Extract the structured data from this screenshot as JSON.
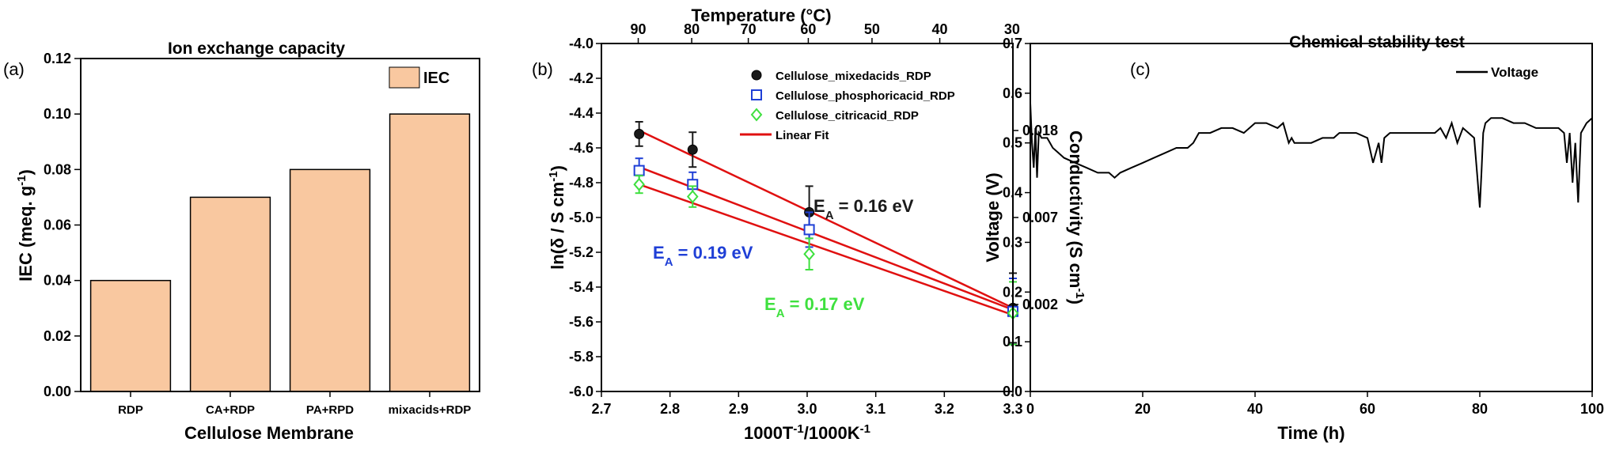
{
  "panels": {
    "a": {
      "letter": "(a)",
      "chart_data": {
        "type": "bar",
        "title": "Ion exchange capacity",
        "xlabel": "Cellulose Membrane",
        "ylabel": "IEC (meq. g",
        "ylabel_sup": "-1",
        "ylabel_end": ")",
        "categories": [
          "RDP",
          "CA+RDP",
          "PA+RPD",
          "mixacids+RDP"
        ],
        "series": [
          {
            "name": "IEC",
            "values": [
              0.04,
              0.07,
              0.08,
              0.1
            ]
          }
        ],
        "ylim": [
          0.0,
          0.12
        ],
        "yticks": [
          "0.00",
          "0.02",
          "0.04",
          "0.06",
          "0.08",
          "0.10",
          "0.12"
        ],
        "legend": "top-right",
        "bar_color": "#F9C8A0"
      }
    },
    "b": {
      "letter": "(b)",
      "chart_data": {
        "type": "scatter",
        "xlabel": "1000T",
        "xlabel_sup1": "-1",
        "xlabel_mid": "/1000K",
        "xlabel_sup2": "-1",
        "ylabel": "ln(δ / S cm",
        "ylabel_sup": "-1",
        "ylabel_end": ")",
        "top_label": "Temperature (°C)",
        "right_label": "Conductivity (S cm",
        "right_label_sup": "-1",
        "right_label_end": ")",
        "xlim": [
          2.7,
          3.3
        ],
        "ylim": [
          -6.0,
          -4.0
        ],
        "xticks": [
          "2.7",
          "2.8",
          "2.9",
          "3.0",
          "3.1",
          "3.2",
          "3.3"
        ],
        "yticks": [
          "-6.0",
          "-5.8",
          "-5.6",
          "-5.4",
          "-5.2",
          "-5.0",
          "-4.8",
          "-4.6",
          "-4.4",
          "-4.2",
          "-4.0"
        ],
        "top_ticks": [
          "90",
          "80",
          "70",
          "60",
          "50",
          "40",
          "30"
        ],
        "top_tick_temps": [
          90,
          80,
          70,
          60,
          50,
          40,
          30
        ],
        "right_ticks": [
          "0.018",
          "0.007",
          "0.002"
        ],
        "right_tick_values": [
          -4.5,
          -5.0,
          -5.5
        ],
        "x": [
          2.755,
          2.833,
          3.003,
          3.3
        ],
        "series": [
          {
            "name": "Cellulose_mixedacids_RDP",
            "values": [
              -4.52,
              -4.61,
              -4.97,
              -5.52
            ],
            "err": [
              0.07,
              0.1,
              0.15,
              0.2
            ],
            "color": "#1a1a1a",
            "marker": "circle"
          },
          {
            "name": "Cellulose_phosphoricacid_RDP",
            "values": [
              -4.73,
              -4.81,
              -5.07,
              -5.54
            ],
            "err": [
              0.07,
              0.07,
              0.1,
              0.19
            ],
            "color": "#1f3fd6",
            "marker": "square"
          },
          {
            "name": "Cellulose_citricacid_RDP",
            "values": [
              -4.81,
              -4.88,
              -5.21,
              -5.55
            ],
            "err": [
              0.05,
              0.06,
              0.09,
              0.18
            ],
            "color": "#3ee03e",
            "marker": "diamond"
          }
        ],
        "fits": [
          {
            "x": [
              2.755,
              3.3
            ],
            "y": [
              -4.5,
              -5.52
            ]
          },
          {
            "x": [
              2.755,
              3.3
            ],
            "y": [
              -4.71,
              -5.53
            ]
          },
          {
            "x": [
              2.755,
              3.3
            ],
            "y": [
              -4.81,
              -5.56
            ]
          }
        ],
        "fit_name": "Linear Fit",
        "fit_color": "#e01010",
        "annotations": [
          {
            "label": "E",
            "sub": "A",
            "rest": " = 0.16 eV",
            "color": "#1a1a1a"
          },
          {
            "label": "E",
            "sub": "A",
            "rest": " = 0.19 eV",
            "color": "#1f3fd6"
          },
          {
            "label": "E",
            "sub": "A",
            "rest": " = 0.17 eV",
            "color": "#3ee03e"
          }
        ],
        "legend": "top-right"
      }
    },
    "c": {
      "letter": "(c)",
      "chart_data": {
        "type": "line",
        "title": "Chemical stability test",
        "xlabel": "Time (h)",
        "ylabel": "Voltage (V)",
        "xlim": [
          0,
          100
        ],
        "ylim": [
          0.0,
          0.7
        ],
        "xticks": [
          "0",
          "20",
          "40",
          "60",
          "80",
          "100"
        ],
        "yticks": [
          "0.0",
          "0.1",
          "0.2",
          "0.3",
          "0.4",
          "0.5",
          "0.6",
          "0.7"
        ],
        "legend": "top-right",
        "series": [
          {
            "name": "Voltage",
            "x": [
              0,
              0.3,
              0.6,
              0.9,
              1.2,
              1.5,
              2,
              3,
              4,
              5,
              6,
              8,
              10,
              12,
              14,
              15,
              16,
              18,
              20,
              22,
              24,
              26,
              28,
              29,
              30,
              32,
              34,
              36,
              38,
              40,
              42,
              44,
              45,
              46,
              46.5,
              47,
              48,
              50,
              52,
              54,
              55,
              56,
              58,
              60,
              61,
              62,
              62.5,
              63,
              64,
              66,
              68,
              70,
              72,
              73,
              74,
              75,
              76,
              77,
              78,
              79,
              79.5,
              80,
              80.3,
              80.6,
              81,
              82,
              84,
              86,
              88,
              90,
              92,
              94,
              95,
              95.5,
              96,
              96.5,
              97,
              97.5,
              98,
              99,
              100
            ],
            "y": [
              0.58,
              0.5,
              0.45,
              0.53,
              0.43,
              0.52,
              0.51,
              0.51,
              0.49,
              0.48,
              0.47,
              0.46,
              0.45,
              0.44,
              0.44,
              0.43,
              0.44,
              0.45,
              0.46,
              0.47,
              0.48,
              0.49,
              0.49,
              0.5,
              0.52,
              0.52,
              0.53,
              0.53,
              0.52,
              0.54,
              0.54,
              0.53,
              0.54,
              0.5,
              0.51,
              0.5,
              0.5,
              0.5,
              0.51,
              0.51,
              0.52,
              0.52,
              0.52,
              0.51,
              0.46,
              0.5,
              0.46,
              0.51,
              0.52,
              0.52,
              0.52,
              0.52,
              0.52,
              0.53,
              0.51,
              0.54,
              0.5,
              0.53,
              0.52,
              0.51,
              0.44,
              0.37,
              0.44,
              0.52,
              0.54,
              0.55,
              0.55,
              0.54,
              0.54,
              0.53,
              0.53,
              0.53,
              0.52,
              0.46,
              0.52,
              0.42,
              0.5,
              0.38,
              0.52,
              0.54,
              0.55
            ]
          }
        ]
      }
    }
  }
}
